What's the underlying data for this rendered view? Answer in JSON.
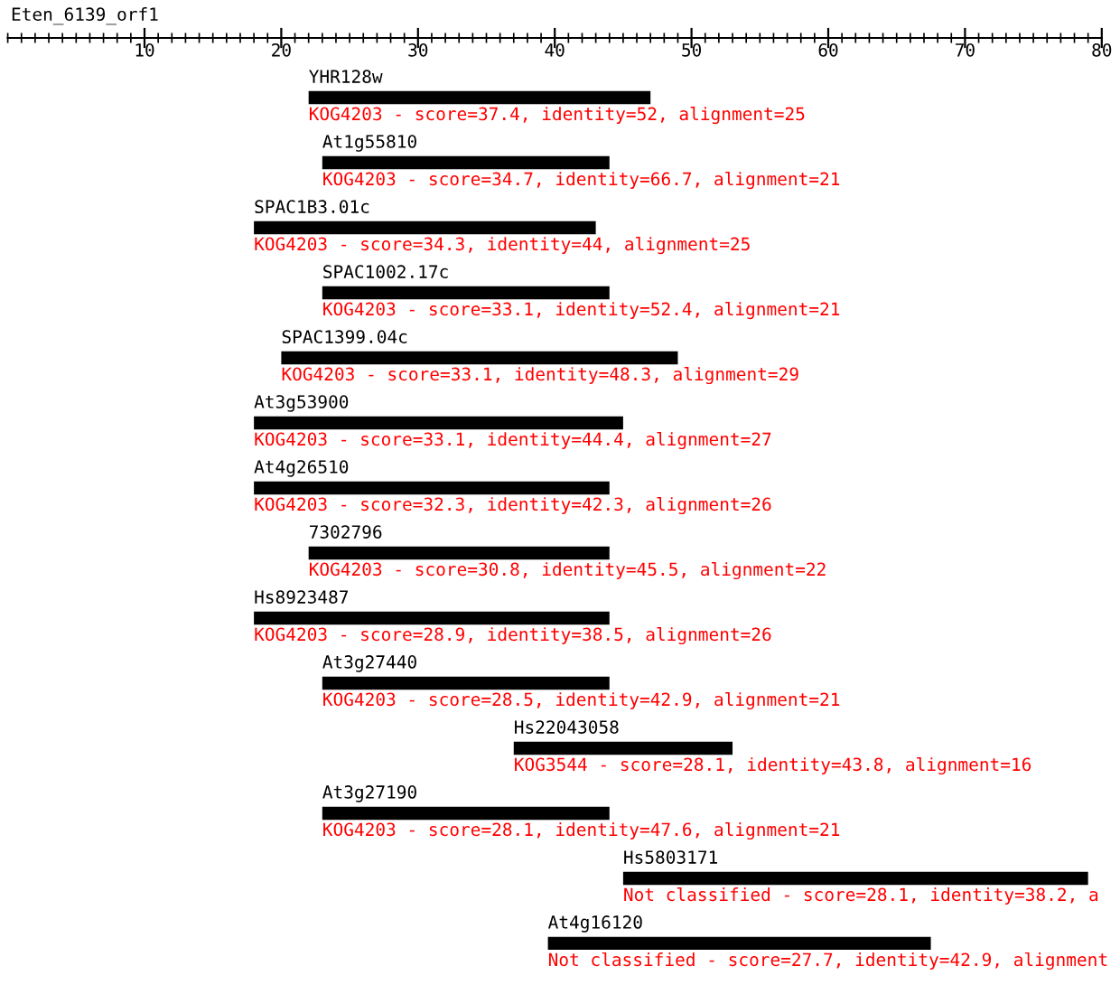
{
  "chart_data": {
    "type": "bar",
    "orientation": "horizontal",
    "title": "Eten_6139_orf1",
    "categories": [
      "YHR128w",
      "At1g55810",
      "SPAC1B3.01c",
      "SPAC1002.17c",
      "SPAC1399.04c",
      "At3g53900",
      "At4g26510",
      "7302796",
      "Hs8923487",
      "At3g27440",
      "Hs22043058",
      "At3g27190",
      "Hs5803171",
      "At4g16120"
    ],
    "base": [
      22,
      23,
      18,
      23,
      20,
      18,
      18,
      22,
      18,
      23,
      37,
      23,
      45,
      39.5
    ],
    "values": [
      25,
      21,
      25,
      21,
      29,
      27,
      26,
      22,
      26,
      21,
      16,
      21,
      34,
      28
    ],
    "color": "#000000",
    "xlim": [
      0,
      80
    ],
    "xticks": [
      10,
      20,
      30,
      40,
      50,
      60,
      70,
      80
    ],
    "grid": false,
    "legend": false,
    "annotations": [
      {
        "text": "KOG4203 - score=37.4, identity=52, alignment=25",
        "x": 22,
        "y": "YHR128w"
      },
      {
        "text": "KOG4203 - score=34.7, identity=66.7, alignment=21",
        "x": 23,
        "y": "At1g55810"
      },
      {
        "text": "KOG4203 - score=34.3, identity=44, alignment=25",
        "x": 18,
        "y": "SPAC1B3.01c"
      },
      {
        "text": "KOG4203 - score=33.1, identity=52.4, alignment=21",
        "x": 23,
        "y": "SPAC1002.17c"
      },
      {
        "text": "KOG4203 - score=33.1, identity=48.3, alignment=29",
        "x": 20,
        "y": "SPAC1399.04c"
      },
      {
        "text": "KOG4203 - score=33.1, identity=44.4, alignment=27",
        "x": 18,
        "y": "At3g53900"
      },
      {
        "text": "KOG4203 - score=32.3, identity=42.3, alignment=26",
        "x": 18,
        "y": "At4g26510"
      },
      {
        "text": "KOG4203 - score=30.8, identity=45.5, alignment=22",
        "x": 22,
        "y": "7302796"
      },
      {
        "text": "KOG4203 - score=28.9, identity=38.5, alignment=26",
        "x": 18,
        "y": "Hs8923487"
      },
      {
        "text": "KOG4203 - score=28.5, identity=42.9, alignment=21",
        "x": 23,
        "y": "At3g27440"
      },
      {
        "text": "KOG3544 - score=28.1, identity=43.8, alignment=16",
        "x": 37,
        "y": "Hs22043058"
      },
      {
        "text": "KOG4203 - score=28.1, identity=47.6, alignment=21",
        "x": 23,
        "y": "At3g27190"
      },
      {
        "text": "Not classified - score=28.1, identity=38.2, a",
        "x": 45,
        "y": "Hs5803171"
      },
      {
        "text": "Not classified - score=27.7, identity=42.9, alignment",
        "x": 39.5,
        "y": "At4g16120"
      }
    ]
  }
}
